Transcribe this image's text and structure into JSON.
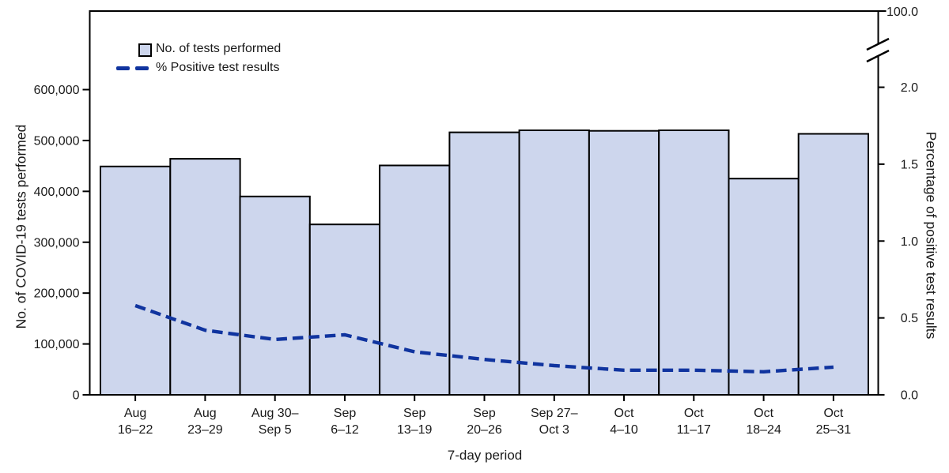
{
  "chart_data": {
    "type": "bar",
    "combo": "bar+line-dual-axis",
    "title": "",
    "categories": [
      "Aug\n16–22",
      "Aug\n23–29",
      "Aug 30–\nSep 5",
      "Sep\n6–12",
      "Sep\n13–19",
      "Sep\n20–26",
      "Sep 27–\nOct 3",
      "Oct\n4–10",
      "Oct\n11–17",
      "Oct\n18–24",
      "Oct\n25–31"
    ],
    "series": [
      {
        "name": "No. of tests performed",
        "type": "bar",
        "axis": "left",
        "values": [
          449000,
          464000,
          390000,
          335000,
          451000,
          516000,
          520000,
          519000,
          520000,
          425000,
          513000
        ]
      },
      {
        "name": "% Positive test results",
        "type": "line",
        "line_style": "dashed",
        "axis": "right",
        "values": [
          0.58,
          0.42,
          0.36,
          0.39,
          0.28,
          0.23,
          0.19,
          0.16,
          0.16,
          0.15,
          0.18
        ]
      }
    ],
    "xlabel": "7-day period",
    "ylabel_left": "No. of COVID-19 tests performed",
    "ylabel_right": "Percentage of positive test results",
    "left_axis": {
      "min": 0,
      "max": 600000,
      "step": 100000,
      "tick_labels": [
        "0",
        "100,000",
        "200,000",
        "300,000",
        "400,000",
        "500,000",
        "600,000"
      ]
    },
    "right_axis": {
      "min": 0,
      "max": 2.0,
      "step": 0.5,
      "tick_labels": [
        "0.0",
        "0.5",
        "1.0",
        "1.5",
        "2.0"
      ],
      "axis_break": true,
      "broken_axis_top_label": "100.0"
    },
    "legend_position": "top-left-inside",
    "grid": false,
    "colors": {
      "bar_fill": "#cdd6ed",
      "bar_stroke": "#000000",
      "line": "#10349f",
      "axis": "#000000"
    }
  }
}
